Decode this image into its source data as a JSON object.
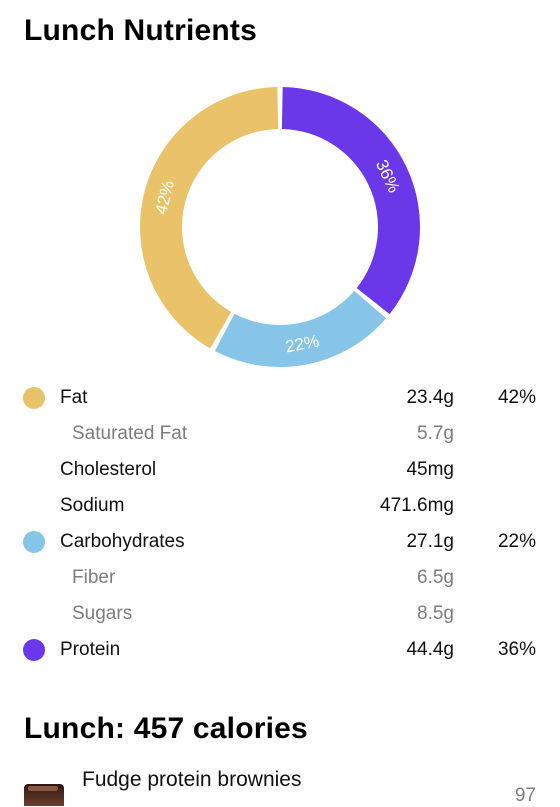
{
  "nutrients_title": "Lunch Nutrients",
  "chart_data": {
    "type": "pie",
    "variant": "donut",
    "slices": [
      {
        "label": "Protein",
        "value": 36,
        "display": "36%",
        "color": "#6a38e8"
      },
      {
        "label": "Carbohydrates",
        "value": 22,
        "display": "22%",
        "color": "#86c5e8"
      },
      {
        "label": "Fat",
        "value": 42,
        "display": "42%",
        "color": "#eac26a"
      }
    ]
  },
  "nutrients": [
    {
      "label": "Fat",
      "amount": "23.4g",
      "percent": "42%",
      "color": "#eac26a",
      "sub": false
    },
    {
      "label": "Saturated Fat",
      "amount": "5.7g",
      "percent": "",
      "color": "",
      "sub": true
    },
    {
      "label": "Cholesterol",
      "amount": "45mg",
      "percent": "",
      "color": "",
      "sub": false
    },
    {
      "label": "Sodium",
      "amount": "471.6mg",
      "percent": "",
      "color": "",
      "sub": false
    },
    {
      "label": "Carbohydrates",
      "amount": "27.1g",
      "percent": "22%",
      "color": "#86c5e8",
      "sub": false
    },
    {
      "label": "Fiber",
      "amount": "6.5g",
      "percent": "",
      "color": "",
      "sub": true
    },
    {
      "label": "Sugars",
      "amount": "8.5g",
      "percent": "",
      "color": "",
      "sub": true
    },
    {
      "label": "Protein",
      "amount": "44.4g",
      "percent": "36%",
      "color": "#6a38e8",
      "sub": false
    }
  ],
  "lunch": {
    "title": "Lunch: 457 calories",
    "items": [
      {
        "name": "Fudge protein brownies",
        "calories": "97",
        "icon": "brownie-thumbnail"
      }
    ]
  }
}
